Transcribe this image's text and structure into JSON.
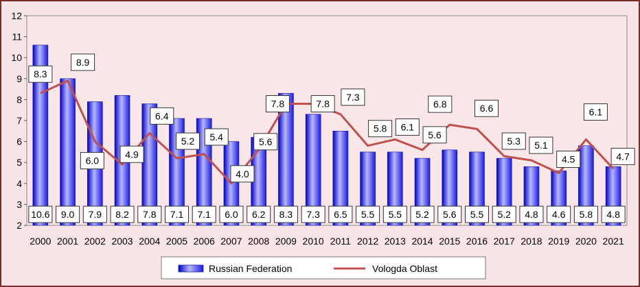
{
  "chart_data": {
    "type": "bar",
    "categories": [
      "2000",
      "2001",
      "2002",
      "2003",
      "2004",
      "2005",
      "2006",
      "2007",
      "2008",
      "2009",
      "2010",
      "2011",
      "2012",
      "2013",
      "2014",
      "2015",
      "2016",
      "2017",
      "2018",
      "2019",
      "2020",
      "2021"
    ],
    "series": [
      {
        "name": "Russian Federation",
        "type": "bar",
        "color": "#3a3af0",
        "values": [
          10.6,
          9.0,
          7.9,
          8.2,
          7.8,
          7.1,
          7.1,
          6.0,
          6.2,
          8.3,
          7.3,
          6.5,
          5.5,
          5.5,
          5.2,
          5.6,
          5.5,
          5.2,
          4.8,
          4.6,
          5.8,
          4.8
        ]
      },
      {
        "name": "Vologda Oblast",
        "type": "line",
        "color": "#c0504d",
        "values": [
          8.3,
          8.9,
          6.0,
          4.9,
          6.4,
          5.2,
          5.4,
          4.0,
          5.6,
          7.8,
          7.8,
          7.3,
          5.8,
          6.1,
          5.6,
          6.8,
          6.6,
          5.3,
          5.1,
          4.5,
          6.1,
          4.7
        ]
      }
    ],
    "ylim": [
      2,
      12
    ],
    "yticks": [
      "2",
      "3",
      "4",
      "5",
      "6",
      "7",
      "8",
      "9",
      "10",
      "11",
      "12"
    ],
    "bar_labels": [
      "10.6",
      "9.0",
      "7.9",
      "8.2",
      "7.8",
      "7.1",
      "7.1",
      "6.0",
      "6.2",
      "8.3",
      "7.3",
      "6.5",
      "5.5",
      "5.5",
      "5.2",
      "5.6",
      "5.5",
      "5.2",
      "4.8",
      "4.6",
      "5.8",
      "4.8"
    ],
    "line_labels": [
      "8.3",
      "8.9",
      "6.0",
      "4.9",
      "6.4",
      "5.2",
      "5.4",
      "4.0",
      "5.6",
      "7.8",
      "7.8",
      "7.3",
      "5.8",
      "6.1",
      "5.6",
      "6.8",
      "6.6",
      "5.3",
      "5.1",
      "4.5",
      "6.1",
      "4.7"
    ],
    "legend": {
      "position": "bottom"
    },
    "grid": false
  }
}
